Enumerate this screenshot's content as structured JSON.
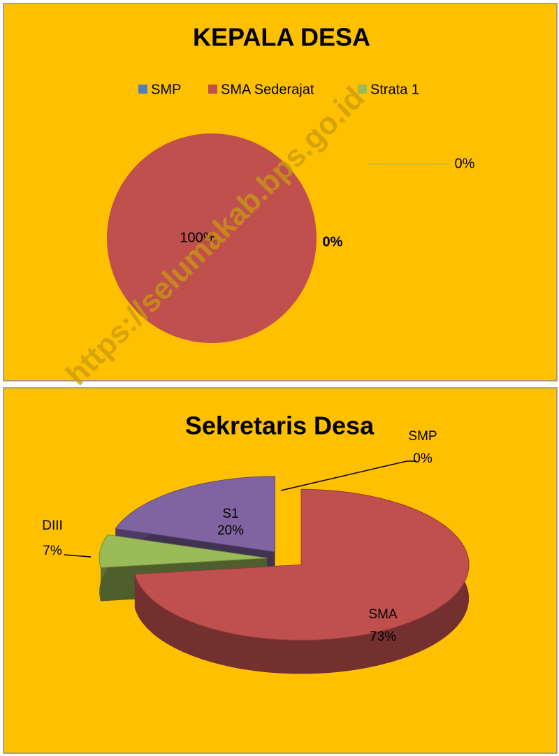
{
  "watermark": "https://selumakab.bps.go.id",
  "chart_data": [
    {
      "type": "pie",
      "title": "KEPALA DESA",
      "categories": [
        "SMP",
        "SMA Sederajat",
        "Strata 1"
      ],
      "values": [
        0,
        100,
        0
      ],
      "value_labels": [
        "0%",
        "100%",
        "0%"
      ],
      "colors": [
        "#4f81bd",
        "#c0504d",
        "#9bbb59"
      ],
      "legend": "top"
    },
    {
      "type": "pie3d",
      "title": "Sekretaris Desa",
      "categories": [
        "SMP",
        "SMA",
        "DIII",
        "S1"
      ],
      "values": [
        0,
        73,
        7,
        20
      ],
      "value_labels": [
        "0%",
        "73%",
        "7%",
        "20%"
      ],
      "colors": [
        "#4f81bd",
        "#c0504d",
        "#9bbb59",
        "#8064a2"
      ]
    }
  ]
}
